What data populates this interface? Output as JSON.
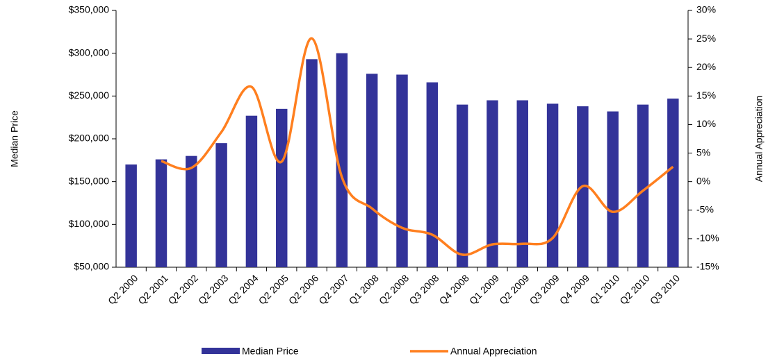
{
  "chart_data": {
    "type": "bar_line",
    "y_label": "Median Price",
    "y2_label": "Annual Appreciation",
    "categories": [
      "Q2 2000",
      "Q2 2001",
      "Q2 2002",
      "Q2 2003",
      "Q2 2004",
      "Q2 2005",
      "Q2 2006",
      "Q2 2007",
      "Q1 2008",
      "Q2 2008",
      "Q3 2008",
      "Q4 2008",
      "Q1 2009",
      "Q2 2009",
      "Q3 2009",
      "Q4 2009",
      "Q1 2010",
      "Q2 2010",
      "Q3 2010"
    ],
    "series": [
      {
        "name": "Median Price",
        "type": "bar",
        "color": "#333399",
        "axis": "y",
        "values": [
          170000,
          176000,
          180000,
          195000,
          227000,
          235000,
          293000,
          300000,
          276000,
          275000,
          266000,
          240000,
          245000,
          245000,
          241000,
          238000,
          232000,
          240000,
          247000
        ]
      },
      {
        "name": "Annual Appreciation",
        "type": "line",
        "color": "#ff7f1f",
        "axis": "y2",
        "values": [
          null,
          3.6,
          2.4,
          8.7,
          16.6,
          3.5,
          25.1,
          0.8,
          -4.7,
          -8.1,
          -9.3,
          -12.8,
          -11,
          -10.9,
          -9.9,
          -0.8,
          -5.3,
          -1.6,
          2.6
        ]
      }
    ],
    "ylim": [
      50000,
      350000
    ],
    "yticks": [
      {
        "value": 50000,
        "label": "$50,000"
      },
      {
        "value": 100000,
        "label": "$100,000"
      },
      {
        "value": 150000,
        "label": "$150,000"
      },
      {
        "value": 200000,
        "label": "$200,000"
      },
      {
        "value": 250000,
        "label": "$250,000"
      },
      {
        "value": 300000,
        "label": "$300,000"
      },
      {
        "value": 350000,
        "label": "$350,000"
      }
    ],
    "y2lim": [
      -15,
      30
    ],
    "y2ticks": [
      {
        "value": -15,
        "label": "-15%"
      },
      {
        "value": -10,
        "label": "-10%"
      },
      {
        "value": -5,
        "label": "-5%"
      },
      {
        "value": 0,
        "label": "0%"
      },
      {
        "value": 5,
        "label": "5%"
      },
      {
        "value": 10,
        "label": "10%"
      },
      {
        "value": 15,
        "label": "15%"
      },
      {
        "value": 20,
        "label": "20%"
      },
      {
        "value": 25,
        "label": "25%"
      },
      {
        "value": 30,
        "label": "30%"
      }
    ],
    "legend": "bottom"
  }
}
